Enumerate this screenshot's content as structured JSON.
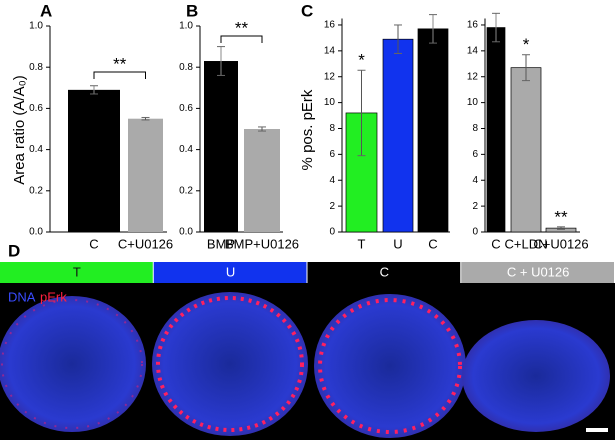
{
  "chart_data": [
    {
      "type": "bar",
      "panel": "A",
      "ylabel": "Area ratio (A/A₀)",
      "categories": [
        "C",
        "C+U0126"
      ],
      "values": [
        0.69,
        0.55
      ],
      "errors": [
        0.02,
        0.006
      ],
      "colors": [
        "#000000",
        "#aaaaaa"
      ],
      "significance": "**",
      "ylim": [
        0,
        1
      ],
      "yticks": [
        {
          "value": 0,
          "label": "0.0"
        },
        0.2,
        0.4,
        0.6,
        0.8,
        {
          "value": 1,
          "label": "1.0"
        }
      ]
    },
    {
      "type": "bar",
      "panel": "B",
      "categories": [
        "BMP",
        "BMP+U0126"
      ],
      "values": [
        0.83,
        0.5
      ],
      "errors": [
        0.07,
        0.01
      ],
      "colors": [
        "#000000",
        "#aaaaaa"
      ],
      "significance": "**",
      "ylim": [
        0,
        1
      ],
      "yticks": [
        {
          "value": 0,
          "label": "0.0"
        },
        0.2,
        0.4,
        0.6,
        0.8,
        {
          "value": 1,
          "label": "1.0"
        }
      ]
    },
    {
      "type": "bar",
      "panel": "C",
      "ylabel": "% pos. pErk",
      "categories": [
        "T",
        "U",
        "C"
      ],
      "values": [
        9.2,
        14.9,
        15.7
      ],
      "errors": [
        3.3,
        1.1,
        1.1
      ],
      "colors": [
        "#22ee22",
        "#1133ee",
        "#000000"
      ],
      "annotations": [
        "*",
        null,
        null
      ],
      "ylim": [
        0,
        16.5
      ],
      "yticks": [
        0,
        2,
        4,
        6,
        8,
        10,
        12,
        14,
        16
      ]
    },
    {
      "type": "bar",
      "categories": [
        "C",
        "C+LDN",
        "C+U0126"
      ],
      "values": [
        15.8,
        12.7,
        0.3
      ],
      "errors": [
        1.1,
        1.0,
        0.1
      ],
      "colors": [
        "#000000",
        "#aaaaaa",
        "#aaaaaa"
      ],
      "annotations": [
        null,
        "*",
        "**"
      ],
      "ylim": [
        0,
        16.5
      ],
      "yticks": [
        0,
        2,
        4,
        6,
        8,
        10,
        12,
        14,
        16
      ]
    }
  ],
  "image_panel": {
    "panel": "D",
    "labels": [
      "T",
      "U",
      "C",
      "C + U0126"
    ],
    "colors": [
      "#22ee22",
      "#1133ee",
      "#000000",
      "#aaaaaa"
    ],
    "stain_labels": [
      "DNA",
      "pErk"
    ]
  }
}
